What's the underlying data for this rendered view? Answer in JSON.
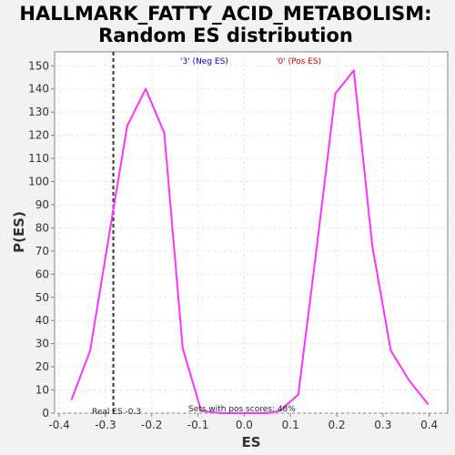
{
  "chart_data": {
    "type": "line",
    "title": "HALLMARK_FATTY_ACID_METABOLISM:",
    "subtitle": "Random ES distribution",
    "xlabel": "ES",
    "ylabel": "P(ES)",
    "xlim": [
      -0.41,
      0.44
    ],
    "ylim": [
      0,
      156
    ],
    "xticks": [
      -0.4,
      -0.3,
      -0.2,
      -0.1,
      0.0,
      0.1,
      0.2,
      0.3,
      0.4
    ],
    "xtick_labels": [
      "-0.4",
      "-0.3",
      "-0.2",
      "-0.1",
      "0.0",
      "0.1",
      "0.2",
      "0.3",
      "0.4"
    ],
    "yticks": [
      0,
      10,
      20,
      30,
      40,
      50,
      60,
      70,
      80,
      90,
      100,
      110,
      120,
      130,
      140,
      150
    ],
    "grid": true,
    "series": [
      {
        "color": "#ff33ff",
        "x": [
          -0.373,
          -0.333,
          -0.293,
          -0.253,
          -0.213,
          -0.173,
          -0.133,
          -0.093,
          -0.05,
          0.0,
          0.05,
          0.077,
          0.117,
          0.157,
          0.197,
          0.237,
          0.277,
          0.317,
          0.357,
          0.397
        ],
        "y": [
          6,
          27,
          76,
          124,
          140,
          121,
          28,
          1,
          0,
          0,
          0,
          1,
          8,
          72,
          138,
          148,
          72,
          27,
          14,
          4
        ]
      }
    ],
    "real_es": -0.283,
    "real_es_label": "Real ES -0.3",
    "legend": [
      {
        "label": "'3' (Neg ES)",
        "color": "#0000cc"
      },
      {
        "label": "'0' (Pos ES)",
        "color": "#cc0000"
      }
    ],
    "pos_scores_label": "Sets with pos scores: 48%"
  }
}
